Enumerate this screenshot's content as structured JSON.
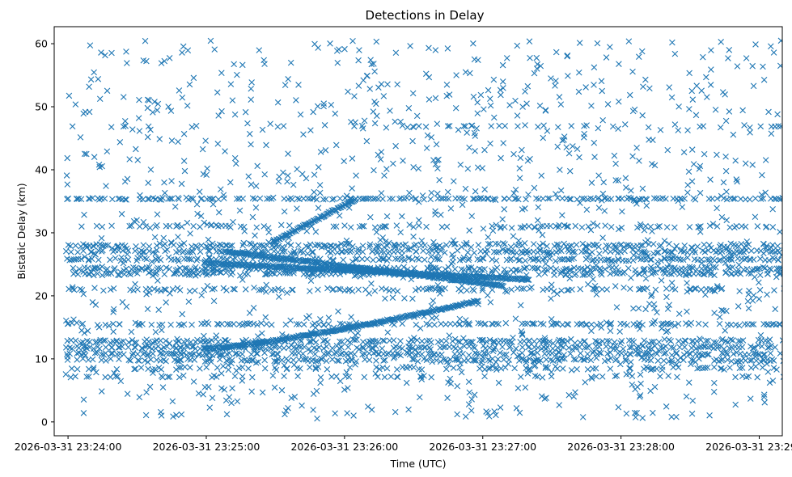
{
  "chart_data": {
    "type": "scatter",
    "title": "Detections in Delay",
    "xlabel": "Time (UTC)",
    "ylabel": "Bistatic Delay (km)",
    "marker": "x",
    "color": "#1f77b4",
    "grid": false,
    "x_range": [
      "2026-03-31 23:23:54",
      "2026-03-31 23:29:10"
    ],
    "x_ticks": [
      "2026-03-31 23:24:00",
      "2026-03-31 23:25:00",
      "2026-03-31 23:26:00",
      "2026-03-31 23:27:00",
      "2026-03-31 23:28:00",
      "2026-03-31 23:29:00"
    ],
    "ylim": [
      -2.2,
      62.7
    ],
    "y_ticks": [
      "0",
      "10",
      "20",
      "30",
      "40",
      "50",
      "60"
    ],
    "data_start": "2026-03-31 23:23:59",
    "data_end": "2026-03-31 23:29:10",
    "tracks": [
      {
        "start": "2026-03-31 23:24:59",
        "end": "2026-03-31 23:26:58",
        "y_start": 11.6,
        "y_end": 19.2,
        "curve": 1.3
      },
      {
        "start": "2026-03-31 23:25:29",
        "end": "2026-03-31 23:26:05",
        "y_start": 28.6,
        "y_end": 35.3,
        "curve": 1.0
      },
      {
        "start": "2026-03-31 23:25:09",
        "end": "2026-03-31 23:27:09",
        "y_start": 27.0,
        "y_end": 21.6,
        "curve": 1.0
      },
      {
        "start": "2026-03-31 23:24:59",
        "end": "2026-03-31 23:27:20",
        "y_start": 25.2,
        "y_end": 22.6,
        "curve": 1.0
      }
    ],
    "bands": [
      {
        "y": 35.4,
        "spread": 0.3,
        "density": 0.55
      },
      {
        "y": 46.9,
        "spread": 0.3,
        "density": 0.12
      },
      {
        "y": 28.0,
        "spread": 0.8,
        "density": 0.6
      },
      {
        "y": 27.0,
        "spread": 0.6,
        "density": 0.6
      },
      {
        "y": 25.8,
        "spread": 0.6,
        "density": 0.6
      },
      {
        "y": 24.3,
        "spread": 0.6,
        "density": 0.6
      },
      {
        "y": 23.5,
        "spread": 0.6,
        "density": 0.5
      },
      {
        "y": 21.0,
        "spread": 0.6,
        "density": 0.35
      },
      {
        "y": 31.0,
        "spread": 0.5,
        "density": 0.3
      },
      {
        "y": 15.5,
        "spread": 0.4,
        "density": 0.45
      },
      {
        "y": 12.8,
        "spread": 0.6,
        "density": 0.6
      },
      {
        "y": 11.8,
        "spread": 0.6,
        "density": 0.65
      },
      {
        "y": 10.8,
        "spread": 0.6,
        "density": 0.6
      },
      {
        "y": 9.8,
        "spread": 0.6,
        "density": 0.5
      },
      {
        "y": 8.5,
        "spread": 0.6,
        "density": 0.3
      },
      {
        "y": 7.2,
        "spread": 0.4,
        "density": 0.15
      }
    ],
    "scatter_y_range": [
      0.5,
      60.5
    ],
    "scatter_count": 1150
  }
}
